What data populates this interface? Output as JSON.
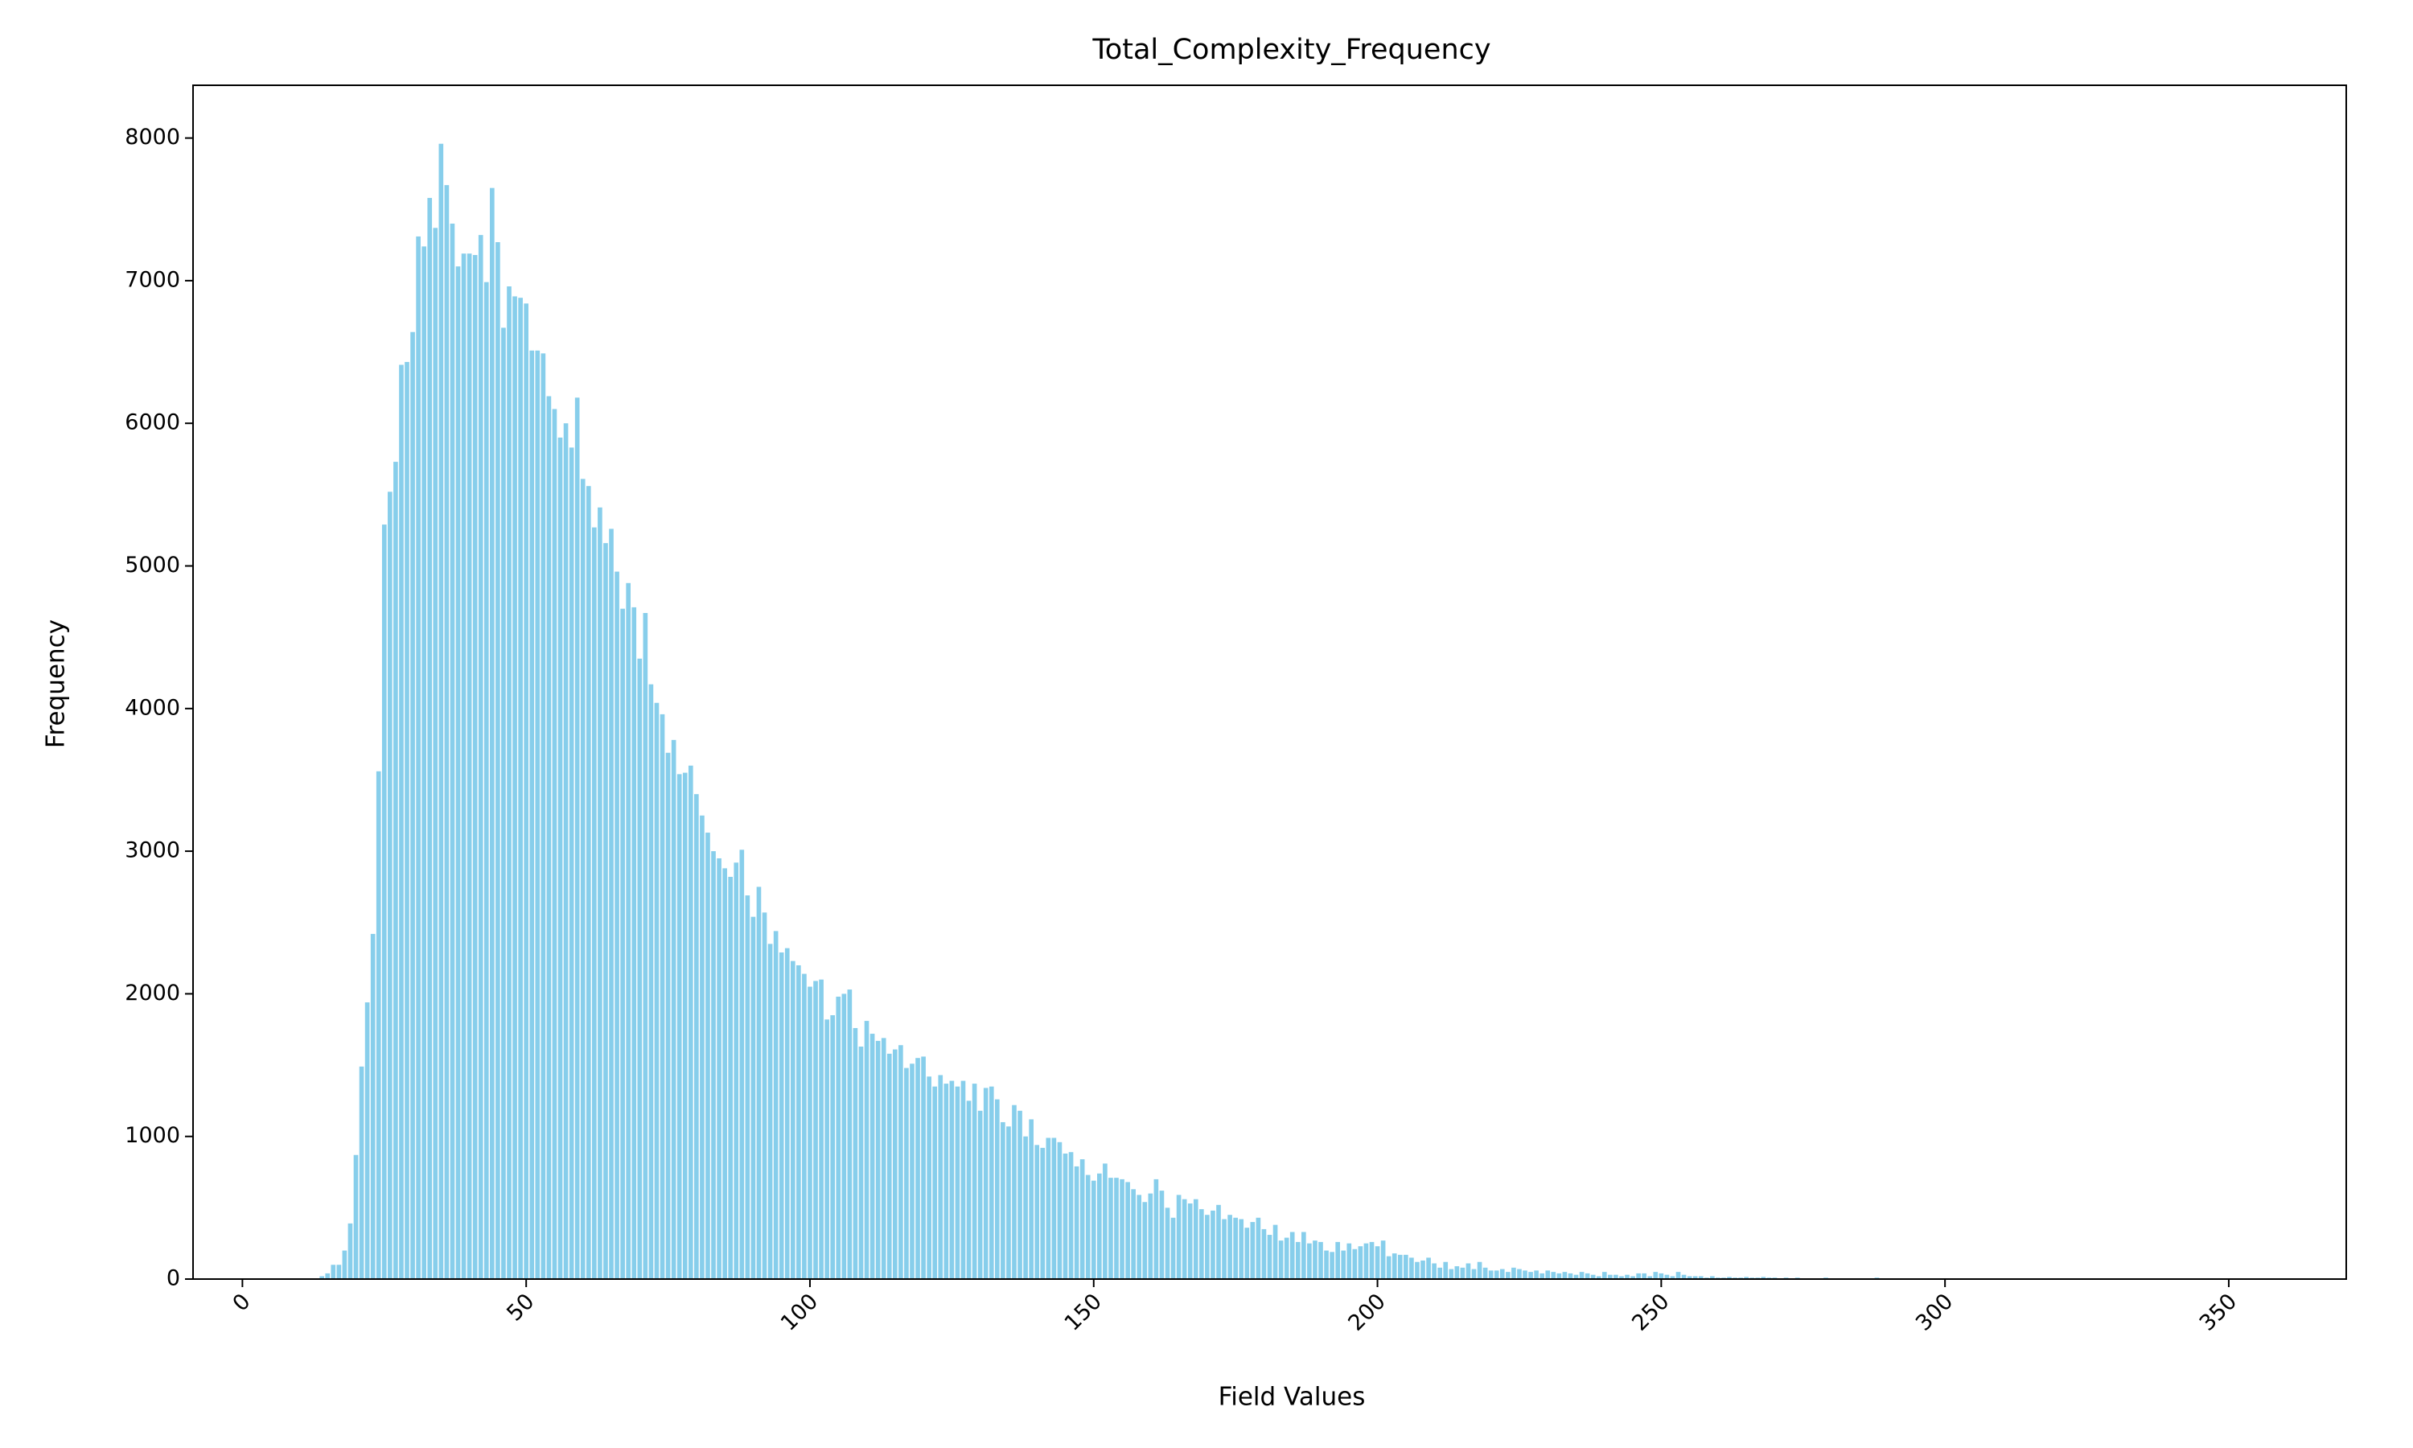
{
  "chart_data": {
    "type": "bar",
    "title": "Total_Complexity_Frequency",
    "x_label": "Field Values",
    "y_label": "Frequency",
    "color": "#87ceeb",
    "x": [
      14,
      15,
      16,
      17,
      18,
      19,
      20,
      21,
      22,
      23,
      24,
      25,
      26,
      27,
      28,
      29,
      30,
      31,
      32,
      33,
      34,
      35,
      36,
      37,
      38,
      39,
      40,
      41,
      42,
      43,
      44,
      45,
      46,
      47,
      48,
      49,
      50,
      51,
      52,
      53,
      54,
      55,
      56,
      57,
      58,
      59,
      60,
      61,
      62,
      63,
      64,
      65,
      66,
      67,
      68,
      69,
      70,
      71,
      72,
      73,
      74,
      75,
      76,
      77,
      78,
      79,
      80,
      81,
      82,
      83,
      84,
      85,
      86,
      87,
      88,
      89,
      90,
      91,
      92,
      93,
      94,
      95,
      96,
      97,
      98,
      99,
      100,
      101,
      102,
      103,
      104,
      105,
      106,
      107,
      108,
      109,
      110,
      111,
      112,
      113,
      114,
      115,
      116,
      117,
      118,
      119,
      120,
      121,
      122,
      123,
      124,
      125,
      126,
      127,
      128,
      129,
      130,
      131,
      132,
      133,
      134,
      135,
      136,
      137,
      138,
      139,
      140,
      141,
      142,
      143,
      144,
      145,
      146,
      147,
      148,
      149,
      150,
      151,
      152,
      153,
      154,
      155,
      156,
      157,
      158,
      159,
      160,
      161,
      162,
      163,
      164,
      165,
      166,
      167,
      168,
      169,
      170,
      171,
      172,
      173,
      174,
      175,
      176,
      177,
      178,
      179,
      180,
      181,
      182,
      183,
      184,
      185,
      186,
      187,
      188,
      189,
      190,
      191,
      192,
      193,
      194,
      195,
      196,
      197,
      198,
      199,
      200,
      201,
      202,
      203,
      204,
      205,
      206,
      207,
      208,
      209,
      210,
      211,
      212,
      213,
      214,
      215,
      216,
      217,
      218,
      219,
      220,
      221,
      222,
      223,
      224,
      225,
      226,
      227,
      228,
      229,
      230,
      231,
      232,
      233,
      234,
      235,
      236,
      237,
      238,
      239,
      240,
      241,
      242,
      243,
      244,
      245,
      246,
      247,
      248,
      249,
      250,
      251,
      252,
      253,
      254,
      255,
      256,
      257,
      258,
      259,
      260,
      261,
      262,
      263,
      264,
      265,
      266,
      267,
      268,
      269,
      270,
      271,
      272,
      273,
      274,
      275,
      276,
      277,
      278,
      279,
      280,
      281,
      282,
      283,
      284,
      285,
      286,
      287,
      288,
      289,
      290,
      291,
      292,
      293,
      294,
      295,
      296,
      297,
      298,
      299,
      300
    ],
    "values": [
      20,
      40,
      100,
      100,
      200,
      390,
      870,
      1490,
      1940,
      2420,
      3560,
      5290,
      5520,
      5730,
      6410,
      6430,
      6640,
      7310,
      7240,
      7580,
      7370,
      7960,
      7670,
      7400,
      7100,
      7190,
      7190,
      7180,
      7320,
      6990,
      7650,
      7270,
      6670,
      6960,
      6890,
      6880,
      6840,
      6510,
      6510,
      6490,
      6190,
      6100,
      5900,
      6000,
      5830,
      6180,
      5610,
      5560,
      5270,
      5410,
      5160,
      5260,
      4960,
      4700,
      4880,
      4710,
      4350,
      4670,
      4170,
      4040,
      3960,
      3690,
      3780,
      3540,
      3550,
      3600,
      3400,
      3250,
      3130,
      3000,
      2950,
      2880,
      2820,
      2920,
      3010,
      2690,
      2540,
      2750,
      2570,
      2350,
      2440,
      2290,
      2320,
      2230,
      2200,
      2140,
      2050,
      2090,
      2100,
      1820,
      1850,
      1980,
      2000,
      2030,
      1760,
      1630,
      1810,
      1720,
      1670,
      1690,
      1580,
      1610,
      1640,
      1480,
      1510,
      1550,
      1560,
      1420,
      1350,
      1430,
      1370,
      1390,
      1350,
      1390,
      1250,
      1370,
      1180,
      1340,
      1350,
      1260,
      1100,
      1070,
      1220,
      1180,
      1000,
      1120,
      940,
      920,
      990,
      990,
      960,
      880,
      890,
      790,
      840,
      730,
      690,
      740,
      810,
      710,
      710,
      700,
      680,
      630,
      590,
      540,
      600,
      700,
      620,
      500,
      430,
      590,
      560,
      530,
      560,
      490,
      450,
      480,
      520,
      420,
      450,
      430,
      420,
      360,
      400,
      430,
      350,
      310,
      380,
      270,
      290,
      330,
      260,
      330,
      250,
      270,
      260,
      200,
      190,
      260,
      200,
      250,
      210,
      230,
      250,
      260,
      230,
      270,
      160,
      180,
      170,
      170,
      150,
      120,
      130,
      150,
      110,
      80,
      120,
      70,
      90,
      80,
      110,
      70,
      120,
      80,
      60,
      60,
      70,
      50,
      80,
      70,
      60,
      50,
      60,
      40,
      60,
      50,
      40,
      50,
      40,
      30,
      50,
      40,
      30,
      20,
      50,
      30,
      30,
      20,
      30,
      20,
      40,
      40,
      20,
      50,
      40,
      30,
      20,
      50,
      30,
      20,
      20,
      20,
      10,
      20,
      10,
      10,
      15,
      10,
      10,
      15,
      10,
      10,
      15,
      10,
      10,
      5,
      10,
      5,
      10,
      5,
      5,
      5,
      5,
      10,
      5,
      5,
      5,
      5,
      5,
      5,
      5,
      5,
      10,
      5,
      5,
      5,
      0,
      5,
      0,
      5,
      0,
      5,
      0,
      0,
      5
    ],
    "xlim": [
      -8.7,
      370.7
    ],
    "xticks": [
      0,
      50,
      100,
      150,
      200,
      250,
      300,
      350
    ],
    "ylim": [
      0,
      8370
    ],
    "yticks": [
      0,
      1000,
      2000,
      3000,
      4000,
      5000,
      6000,
      7000,
      8000
    ],
    "grid": false
  }
}
